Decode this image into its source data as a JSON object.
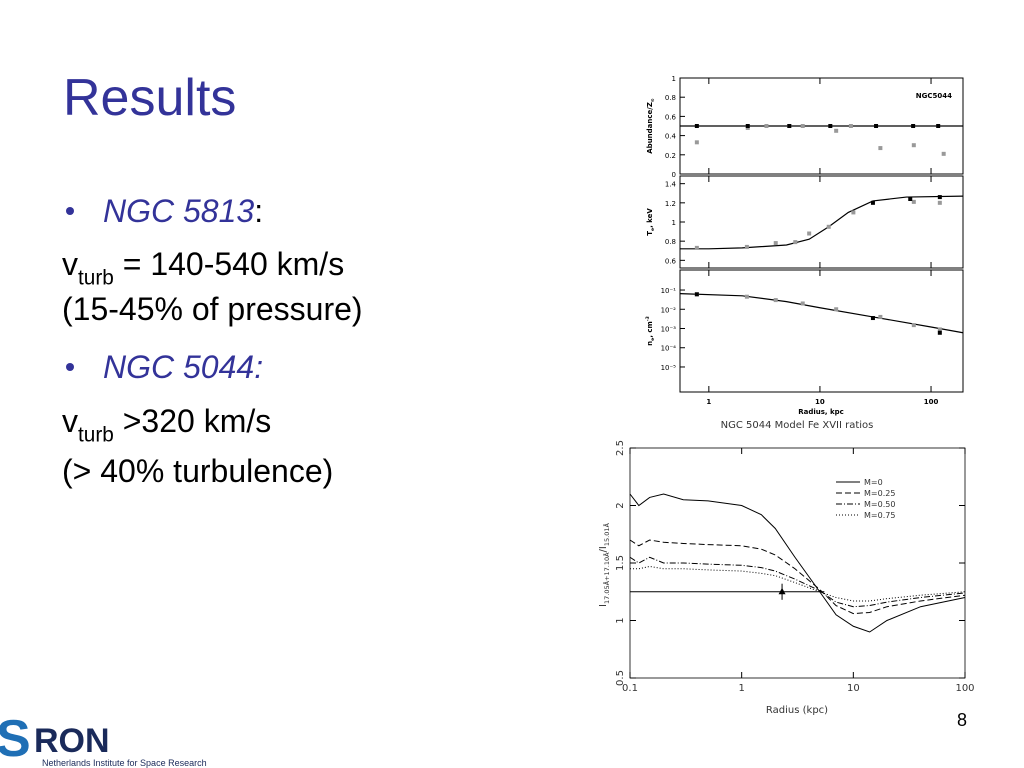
{
  "title": "Results",
  "items": [
    {
      "type": "bullet",
      "parts": [
        {
          "text": "NGC 5813",
          "style": "italic-blue"
        },
        {
          "text": ":"
        }
      ]
    },
    {
      "type": "plain",
      "parts": [
        {
          "text": "v"
        },
        {
          "text": "turb",
          "script": "sub"
        },
        {
          "text": " = 140-540 km/s"
        }
      ]
    },
    {
      "type": "plain",
      "parts": [
        {
          "text": "(15-45% of pressure)"
        }
      ]
    },
    {
      "type": "bullet",
      "parts": [
        {
          "text": "NGC 5044:",
          "style": "italic-blue"
        }
      ]
    },
    {
      "type": "plain",
      "parts": [
        {
          "text": "v"
        },
        {
          "text": "turb",
          "script": "sub"
        },
        {
          "text": " >320 km/s"
        }
      ]
    },
    {
      "type": "plain",
      "parts": [
        {
          "text": "(> 40% turbulence)"
        }
      ]
    }
  ],
  "logo": {
    "letter": "S",
    "rest": "RON",
    "tagline": "Netherlands Institute for Space Research"
  },
  "page_number": "8",
  "chart_data": [
    {
      "type": "panels",
      "annotation": "NGC5044",
      "xlabel": "Radius, kpc",
      "xlim": [
        0.55,
        194
      ],
      "xticks": [
        1,
        10,
        100
      ],
      "xlog": true,
      "panels": [
        {
          "ylabel": [
            {
              "text": "Abundance/Z"
            },
            {
              "text": "⊙",
              "script": "sub"
            }
          ],
          "ylim": [
            0,
            1
          ],
          "yticks": [
            0,
            0.2,
            0.4,
            0.6,
            0.8,
            1
          ],
          "ylog": false,
          "series": [
            {
              "kind": "line",
              "color": "#000000",
              "x": [
                0.55,
                194
              ],
              "values": [
                0.5,
                0.5
              ]
            },
            {
              "kind": "points",
              "color": "#999999",
              "x": [
                0.78,
                2.24,
                3.3,
                5.3,
                7,
                14,
                19,
                35,
                70,
                130
              ],
              "values": [
                0.33,
                0.48,
                0.5,
                0.5,
                0.5,
                0.45,
                0.5,
                0.27,
                0.3,
                0.21
              ]
            },
            {
              "kind": "points",
              "color": "#000000",
              "x": [
                0.78,
                2.24,
                5.3,
                12.4,
                32,
                69,
                116
              ],
              "values": [
                0.5,
                0.5,
                0.5,
                0.5,
                0.5,
                0.5,
                0.5
              ]
            }
          ]
        },
        {
          "ylabel": [
            {
              "text": "T"
            },
            {
              "text": "e",
              "script": "sub"
            },
            {
              "text": ", keV"
            }
          ],
          "ylim": [
            0.52,
            1.48
          ],
          "yticks": [
            0.6,
            0.8,
            1,
            1.2,
            1.4
          ],
          "ylog": false,
          "series": [
            {
              "kind": "line",
              "color": "#000000",
              "x": [
                0.55,
                1,
                2,
                5,
                8,
                12,
                18,
                30,
                60,
                194
              ],
              "values": [
                0.72,
                0.72,
                0.73,
                0.76,
                0.82,
                0.95,
                1.1,
                1.22,
                1.26,
                1.27
              ]
            },
            {
              "kind": "points",
              "color": "#999999",
              "x": [
                0.78,
                2.2,
                4,
                6,
                8,
                12,
                20,
                70,
                120
              ],
              "values": [
                0.73,
                0.74,
                0.78,
                0.79,
                0.88,
                0.95,
                1.1,
                1.21,
                1.2
              ]
            },
            {
              "kind": "points",
              "color": "#000000",
              "x": [
                30,
                65,
                120
              ],
              "values": [
                1.2,
                1.24,
                1.26
              ]
            }
          ]
        },
        {
          "ylabel": [
            {
              "text": "n"
            },
            {
              "text": "e",
              "script": "sub"
            },
            {
              "text": ", cm"
            },
            {
              "text": "-3",
              "script": "sup"
            }
          ],
          "ylim": [
            5e-07,
            1.1
          ],
          "ylog": true,
          "yticks": [
            {
              "value": 0.1,
              "label": "10⁻¹"
            },
            {
              "value": 0.01,
              "label": "10⁻²"
            },
            {
              "value": 0.001,
              "label": "10⁻³"
            },
            {
              "value": 0.0001,
              "label": "10⁻⁴"
            },
            {
              "value": 1e-05,
              "label": "10⁻⁵"
            }
          ],
          "series": [
            {
              "kind": "line",
              "color": "#000000",
              "x": [
                0.55,
                2,
                5,
                10,
                30,
                100,
                194
              ],
              "values": [
                0.065,
                0.05,
                0.025,
                0.012,
                0.004,
                0.0012,
                0.0006
              ]
            },
            {
              "kind": "points",
              "color": "#999999",
              "x": [
                0.78,
                2.2,
                4,
                7,
                14,
                35,
                70,
                120
              ],
              "values": [
                0.06,
                0.045,
                0.03,
                0.02,
                0.01,
                0.004,
                0.0015,
                0.0009
              ]
            },
            {
              "kind": "points",
              "color": "#000000",
              "x": [
                0.78,
                30,
                120
              ],
              "values": [
                0.06,
                0.0035,
                0.0006
              ]
            }
          ]
        }
      ]
    },
    {
      "type": "line",
      "title": "NGC 5044 Model Fe XVII ratios",
      "xlabel": "Radius (kpc)",
      "ylabel": [
        {
          "text": "I"
        },
        {
          "text": "17.05Å+17.10Å",
          "script": "sub"
        },
        {
          "text": "/I"
        },
        {
          "text": "15.01Å",
          "script": "sub"
        }
      ],
      "xlim": [
        0.1,
        100
      ],
      "xticks": [
        0.1,
        1,
        10,
        100
      ],
      "xlog": true,
      "ylim": [
        0.5,
        2.5
      ],
      "yticks": [
        0.5,
        1,
        1.5,
        2,
        2.5
      ],
      "legend": "upper right",
      "series": [
        {
          "name": "M=0",
          "color": "#000000",
          "dash": "solid",
          "x": [
            0.1,
            0.12,
            0.15,
            0.2,
            0.3,
            0.5,
            1,
            1.5,
            2,
            3,
            5,
            7,
            10,
            14,
            20,
            40,
            100
          ],
          "values": [
            2.1,
            2.0,
            2.07,
            2.1,
            2.05,
            2.04,
            2.0,
            1.92,
            1.8,
            1.55,
            1.25,
            1.05,
            0.95,
            0.9,
            1.0,
            1.12,
            1.2
          ]
        },
        {
          "name": "M=0.25",
          "color": "#000000",
          "dash": "dashed",
          "x": [
            0.1,
            0.12,
            0.15,
            0.2,
            0.3,
            0.5,
            1,
            1.5,
            2,
            3,
            5,
            7,
            10,
            14,
            20,
            40,
            100
          ],
          "values": [
            1.7,
            1.65,
            1.7,
            1.68,
            1.67,
            1.66,
            1.65,
            1.62,
            1.57,
            1.45,
            1.27,
            1.13,
            1.06,
            1.07,
            1.12,
            1.17,
            1.22
          ]
        },
        {
          "name": "M=0.50",
          "color": "#000000",
          "dash": "dashdot",
          "x": [
            0.1,
            0.12,
            0.15,
            0.2,
            0.3,
            0.5,
            1,
            1.5,
            2,
            3,
            5,
            7,
            10,
            14,
            20,
            40,
            100
          ],
          "values": [
            1.55,
            1.5,
            1.55,
            1.5,
            1.5,
            1.49,
            1.48,
            1.46,
            1.43,
            1.36,
            1.26,
            1.16,
            1.12,
            1.13,
            1.16,
            1.2,
            1.24
          ]
        },
        {
          "name": "M=0.75",
          "color": "#000000",
          "dash": "dotted",
          "x": [
            0.1,
            0.12,
            0.15,
            0.2,
            0.3,
            0.5,
            1,
            1.5,
            2,
            3,
            5,
            7,
            10,
            14,
            20,
            40,
            100
          ],
          "values": [
            1.45,
            1.45,
            1.47,
            1.45,
            1.45,
            1.44,
            1.43,
            1.41,
            1.39,
            1.33,
            1.25,
            1.2,
            1.17,
            1.17,
            1.19,
            1.22,
            1.25
          ]
        }
      ],
      "reference": {
        "x": [
          0.1,
          5.5
        ],
        "values": [
          1.25,
          1.25
        ]
      },
      "observation": {
        "x": 2.3,
        "y": 1.25,
        "error": 0.07
      }
    }
  ]
}
